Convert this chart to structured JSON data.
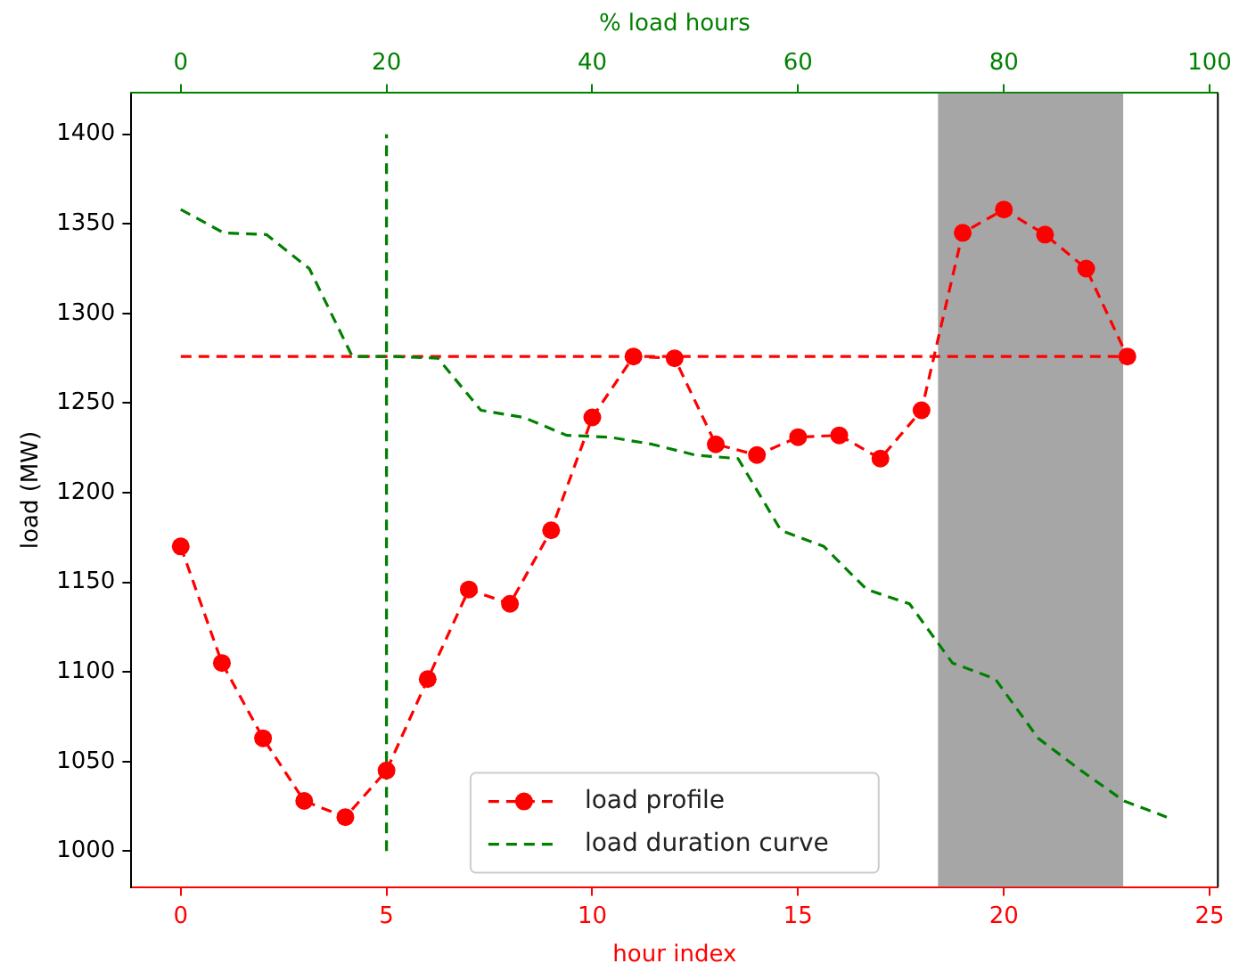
{
  "chart_data": {
    "type": "line",
    "xlabel": "hour index",
    "ylabel": "load (MW)",
    "x2label": "% load hours",
    "xlim": [
      -1.2,
      25.2
    ],
    "xticks": [
      0,
      5,
      10,
      15,
      20,
      25
    ],
    "x2lim": [
      -4.8,
      100.8
    ],
    "x2ticks": [
      0,
      20,
      40,
      60,
      80,
      100
    ],
    "ylim": [
      980,
      1423
    ],
    "yticks": [
      1000,
      1050,
      1100,
      1150,
      1200,
      1250,
      1300,
      1350,
      1400
    ],
    "grid": false,
    "legend": "bottom",
    "line_style": "dashed",
    "series": [
      {
        "name": "load profile",
        "color": "#ff0000",
        "marker": "circle",
        "x": [
          0,
          1,
          2,
          3,
          4,
          5,
          6,
          7,
          8,
          9,
          10,
          11,
          12,
          13,
          14,
          15,
          16,
          17,
          18,
          19,
          20,
          21,
          22,
          23
        ],
        "values": [
          1170,
          1105,
          1063,
          1028,
          1019,
          1045,
          1096,
          1146,
          1138,
          1179,
          1242,
          1276,
          1275,
          1227,
          1221,
          1231,
          1232,
          1219,
          1246,
          1345,
          1358,
          1344,
          1325,
          1276
        ]
      },
      {
        "name": "load duration curve",
        "color": "#008000",
        "marker": "none",
        "axis": "x2",
        "x": [
          0,
          4.17,
          8.33,
          12.5,
          16.67,
          20.83,
          25,
          29.17,
          33.33,
          37.5,
          41.67,
          45.83,
          50,
          54.17,
          58.33,
          62.5,
          66.67,
          70.83,
          75,
          79.17,
          83.33,
          87.5,
          91.67,
          95.83
        ],
        "values": [
          1358,
          1345,
          1344,
          1325,
          1276,
          1276,
          1275,
          1246,
          1242,
          1232,
          1231,
          1227,
          1221,
          1219,
          1179,
          1170,
          1146,
          1138,
          1105,
          1096,
          1063,
          1045,
          1028,
          1019
        ]
      }
    ],
    "ref_lines": [
      {
        "axis": "y",
        "value": 1276,
        "color": "#ff0000",
        "line_style": "dashed"
      },
      {
        "axis": "x",
        "value": 5,
        "color": "#008000",
        "line_style": "dashed"
      }
    ],
    "bands": [
      {
        "axis": "x",
        "from": 18.4,
        "to": 22.9,
        "color": "#808080"
      }
    ]
  }
}
